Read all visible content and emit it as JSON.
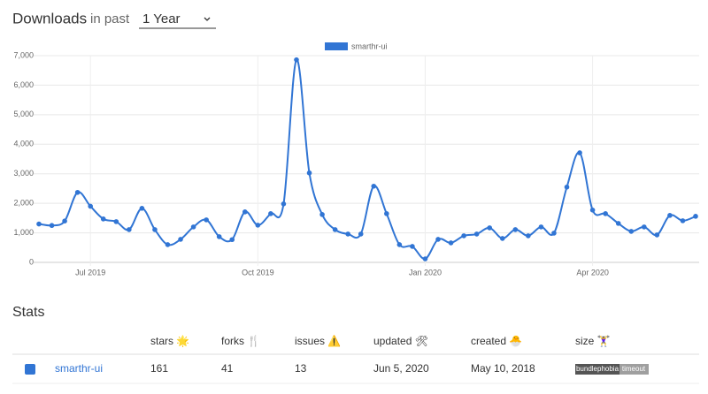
{
  "header": {
    "title": "Downloads",
    "subtitle": "in past",
    "period": "1 Year"
  },
  "chart_data": {
    "type": "line",
    "categories": [
      null,
      null,
      null,
      null,
      "Jul 2019",
      null,
      null,
      null,
      null,
      null,
      null,
      null,
      null,
      null,
      null,
      null,
      null,
      "Oct 2019",
      null,
      null,
      null,
      null,
      null,
      null,
      null,
      null,
      null,
      null,
      null,
      null,
      "Jan 2020",
      null,
      null,
      null,
      null,
      null,
      null,
      null,
      null,
      null,
      null,
      null,
      null,
      "Apr 2020",
      null,
      null,
      null,
      null,
      null,
      null,
      null,
      null
    ],
    "series": [
      {
        "name": "smarthr-ui",
        "color": "#3175d4",
        "values": [
          1300,
          1250,
          1400,
          2370,
          1900,
          1470,
          1380,
          1110,
          1830,
          1110,
          600,
          780,
          1200,
          1440,
          870,
          770,
          1710,
          1260,
          1650,
          1980,
          6860,
          3030,
          1620,
          1110,
          960,
          960,
          2580,
          1650,
          600,
          540,
          120,
          780,
          660,
          900,
          960,
          1170,
          810,
          1110,
          900,
          1200,
          990,
          2550,
          3710,
          1770,
          1650,
          1320,
          1050,
          1200,
          930,
          1590,
          1410,
          1560
        ]
      }
    ],
    "ylim": [
      0,
      7000
    ],
    "yticks": [
      0,
      {
        "value": 1000,
        "label": "1,000"
      },
      {
        "value": 2000,
        "label": "2,000"
      },
      {
        "value": 3000,
        "label": "3,000"
      },
      {
        "value": 4000,
        "label": "4,000"
      },
      {
        "value": 5000,
        "label": "5,000"
      },
      {
        "value": 6000,
        "label": "6,000"
      },
      {
        "value": 7000,
        "label": "7,000"
      }
    ],
    "grid": true,
    "legend": "top"
  },
  "stats": {
    "title": "Stats",
    "columns": [
      "stars 🌟",
      "forks 🍴",
      "issues ⚠️",
      "updated 🛠",
      "created 🐣",
      "size 🏋️‍♀️"
    ],
    "rows": [
      {
        "name": "smarthr-ui",
        "color": "#3175d4",
        "cells": [
          161,
          41,
          13,
          "Jun 5, 2020",
          "May 10, 2018"
        ],
        "badge": [
          "bundlephobia",
          "timeout"
        ]
      }
    ]
  }
}
